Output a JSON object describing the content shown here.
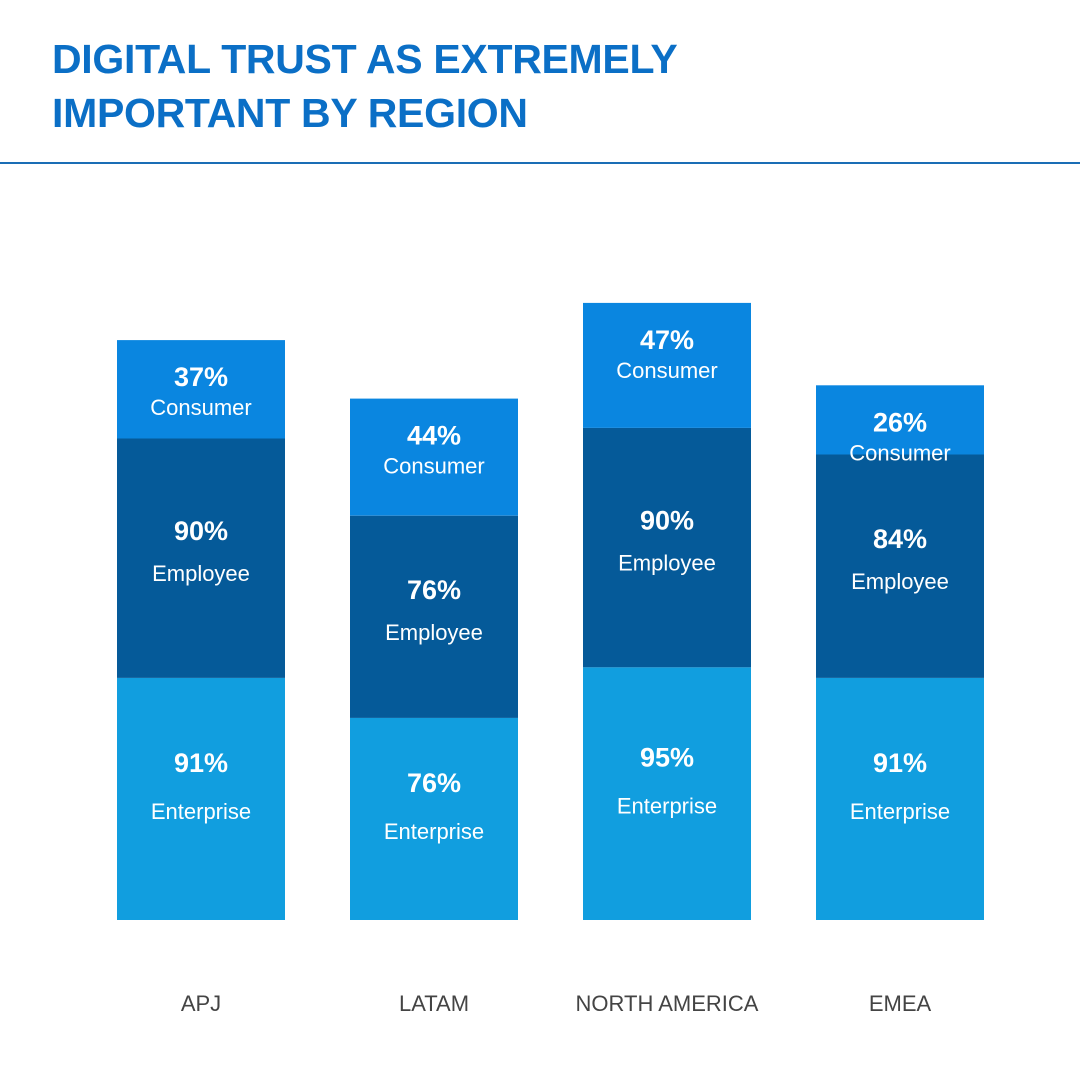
{
  "title": {
    "line1": "DIGITAL TRUST AS EXTREMELY",
    "line2": "IMPORTANT BY REGION"
  },
  "colors": {
    "title": "#0b6fc6",
    "rule": "#1a6db5",
    "Enterprise": "#119edf",
    "Employee": "#055a99",
    "Consumer": "#0a86e0",
    "segment_text": "#ffffff",
    "category_text": "#444444"
  },
  "chart_data": {
    "type": "bar",
    "stacked": true,
    "title": "DIGITAL TRUST AS EXTREMELY IMPORTANT BY REGION",
    "xlabel": "",
    "ylabel": "",
    "unit": "%",
    "categories": [
      "APJ",
      "LATAM",
      "NORTH AMERICA",
      "EMEA"
    ],
    "series": [
      {
        "name": "Enterprise",
        "values": [
          91,
          76,
          95,
          91
        ]
      },
      {
        "name": "Employee",
        "values": [
          90,
          76,
          90,
          84
        ]
      },
      {
        "name": "Consumer",
        "values": [
          37,
          44,
          47,
          26
        ]
      }
    ],
    "stack_order": "Enterprise at bottom, Employee in middle, Consumer on top",
    "grid": false,
    "axes_visible": false
  }
}
